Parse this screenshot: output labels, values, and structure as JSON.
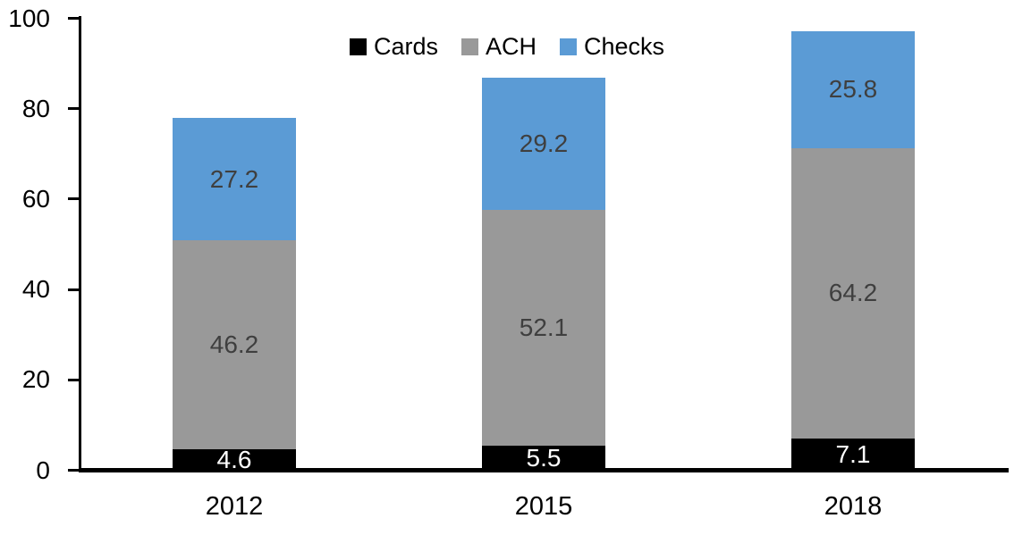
{
  "chart_data": {
    "type": "bar",
    "subtype": "stacked-column",
    "title": "",
    "xlabel": "",
    "ylabel": "",
    "categories": [
      "2012",
      "2015",
      "2018"
    ],
    "series": [
      {
        "name": "Cards",
        "color": "#000000",
        "label_color": "#ffffff",
        "values": [
          4.6,
          5.5,
          7.1
        ]
      },
      {
        "name": "ACH",
        "color": "#999999",
        "label_color": "#3f3f3f",
        "values": [
          46.2,
          52.1,
          64.2
        ]
      },
      {
        "name": "Checks",
        "color": "#5b9bd5",
        "label_color": "#3f3f3f",
        "values": [
          27.2,
          29.2,
          25.8
        ]
      }
    ],
    "ylim": [
      0,
      100
    ],
    "yticks": [
      "0",
      "20",
      "40",
      "60",
      "80",
      "100"
    ],
    "legend": {
      "position": "top",
      "entries": [
        "Cards",
        "ACH",
        "Checks"
      ]
    },
    "grid": false,
    "data_labels": true,
    "axis_color": "#000000",
    "background": "#ffffff"
  }
}
